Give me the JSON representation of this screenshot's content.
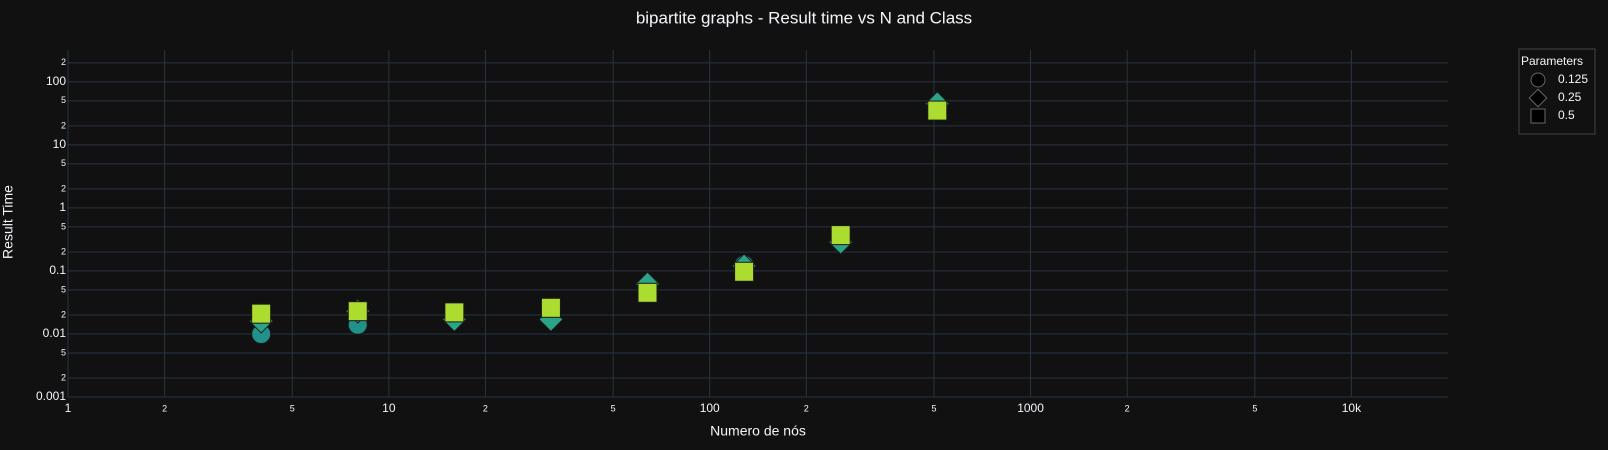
{
  "chart_data": {
    "type": "scatter",
    "title": "bipartite graphs - Result time vs N and Class",
    "x_label": "Numero de nós",
    "y_label": "Result Time",
    "legend_title": "Parameters",
    "log_x": true,
    "log_y": true,
    "grid": true,
    "xlim": [
      1,
      20000
    ],
    "ylim": [
      0.001,
      320
    ],
    "xticks": [
      1,
      2,
      5,
      10,
      {
        "value": 20,
        "label": "2"
      },
      {
        "value": 50,
        "label": "5"
      },
      100,
      {
        "value": 200,
        "label": "2"
      },
      {
        "value": 500,
        "label": "5"
      },
      1000,
      {
        "value": 2000,
        "label": "2"
      },
      {
        "value": 5000,
        "label": "5"
      },
      {
        "value": 10000,
        "label": "10k"
      }
    ],
    "yticks": [
      0.001,
      {
        "value": 0.002,
        "label": "2"
      },
      {
        "value": 0.005,
        "label": "5"
      },
      0.01,
      {
        "value": 0.02,
        "label": "2"
      },
      {
        "value": 0.05,
        "label": "5"
      },
      0.1,
      {
        "value": 0.2,
        "label": "2"
      },
      {
        "value": 0.5,
        "label": "5"
      },
      1,
      {
        "value": 2,
        "label": "2"
      },
      {
        "value": 5,
        "label": "5"
      },
      10,
      {
        "value": 20,
        "label": "2"
      },
      {
        "value": 50,
        "label": "5"
      },
      100,
      {
        "value": 200,
        "label": "2"
      }
    ],
    "x": [
      4,
      8,
      16,
      32,
      64,
      128,
      256,
      512
    ],
    "series": [
      {
        "name": "0.125",
        "symbol": "circle",
        "color": "#21918c",
        "values": [
          0.01,
          0.014,
          0.018,
          0.02,
          0.05,
          0.125,
          0.35,
          37
        ]
      },
      {
        "name": "0.25",
        "symbol": "diamond",
        "color": "#2aa386",
        "values": [
          0.016,
          0.023,
          0.017,
          0.017,
          0.062,
          0.12,
          0.285,
          45
        ]
      },
      {
        "name": "0.5",
        "symbol": "square",
        "color": "#addc30",
        "values": [
          0.021,
          0.023,
          0.022,
          0.026,
          0.045,
          0.097,
          0.37,
          35
        ]
      }
    ]
  }
}
